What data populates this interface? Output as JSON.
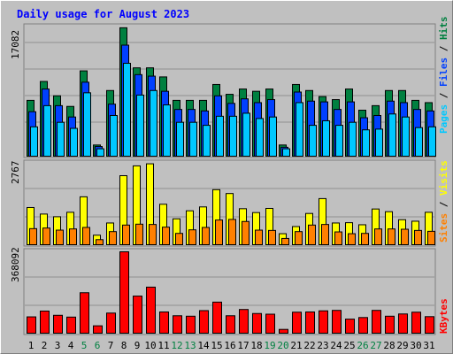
{
  "title": "Daily usage for August 2023",
  "colors": {
    "background": "#c0c0c0",
    "title": "#0000ff",
    "hits": "#008040",
    "files": "#0040ff",
    "pages": "#00c8ff",
    "visits": "#ffff00",
    "sites": "#ff8000",
    "kbytes": "#ff0000",
    "weekday_label": "#000000",
    "weekend_label": "#008040"
  },
  "panel_labels": {
    "top": {
      "pages": "Pages",
      "files": "Files",
      "hits": "Hits",
      "sep": " / "
    },
    "middle": {
      "sites": "Sites",
      "visits": "Visits",
      "sep": " / "
    },
    "bottom": {
      "kbytes": "KBytes"
    }
  },
  "chart_data": [
    {
      "type": "bar",
      "categories": [
        "1",
        "2",
        "3",
        "4",
        "5",
        "6",
        "7",
        "8",
        "9",
        "10",
        "11",
        "12",
        "13",
        "14",
        "15",
        "16",
        "17",
        "18",
        "19",
        "20",
        "21",
        "22",
        "23",
        "24",
        "25",
        "26",
        "27",
        "28",
        "29",
        "30",
        "31"
      ],
      "weekend_days": [
        "5",
        "6",
        "12",
        "13",
        "19",
        "20",
        "26",
        "27"
      ],
      "ylim": [
        0,
        17082
      ],
      "ytick_label": "17082",
      "series": [
        {
          "name": "Hits",
          "values": [
            7500,
            10000,
            8100,
            6700,
            11400,
            1600,
            8800,
            17100,
            11800,
            11800,
            10600,
            7500,
            7500,
            7500,
            9600,
            8300,
            9000,
            8700,
            9000,
            1600,
            9600,
            8800,
            8000,
            7600,
            9000,
            6200,
            6800,
            8800,
            8800,
            7500,
            7200
          ]
        },
        {
          "name": "Files",
          "values": [
            6000,
            9000,
            6800,
            5300,
            9900,
            1400,
            7000,
            14800,
            10900,
            10700,
            8700,
            6300,
            6300,
            6100,
            8100,
            7100,
            7700,
            7200,
            7600,
            1300,
            8600,
            7400,
            7300,
            6300,
            7300,
            5200,
            5500,
            7400,
            7200,
            6300,
            6100
          ]
        },
        {
          "name": "Pages",
          "values": [
            4000,
            6800,
            4600,
            3800,
            8500,
            1100,
            5500,
            12400,
            8200,
            8800,
            6900,
            4600,
            4600,
            4200,
            5400,
            5400,
            5800,
            5100,
            5300,
            1100,
            7200,
            4200,
            4800,
            4200,
            4600,
            3600,
            3700,
            5700,
            5300,
            3900,
            4000
          ]
        }
      ]
    },
    {
      "type": "bar",
      "categories": [
        "1",
        "2",
        "3",
        "4",
        "5",
        "6",
        "7",
        "8",
        "9",
        "10",
        "11",
        "12",
        "13",
        "14",
        "15",
        "16",
        "17",
        "18",
        "19",
        "20",
        "21",
        "22",
        "23",
        "24",
        "25",
        "26",
        "27",
        "28",
        "29",
        "30",
        "31"
      ],
      "ylim": [
        0,
        2767
      ],
      "ytick_label": "2767",
      "series": [
        {
          "name": "Visits",
          "values": [
            1280,
            1060,
            970,
            1120,
            1640,
            350,
            760,
            2350,
            2680,
            2750,
            1390,
            900,
            1170,
            1300,
            1880,
            1750,
            1240,
            1110,
            1250,
            400,
            640,
            1080,
            1580,
            760,
            770,
            700,
            1230,
            1140,
            870,
            820,
            1120
          ]
        },
        {
          "name": "Sites",
          "values": [
            570,
            590,
            520,
            560,
            610,
            200,
            470,
            690,
            720,
            710,
            620,
            410,
            530,
            610,
            860,
            880,
            810,
            520,
            510,
            240,
            470,
            690,
            710,
            460,
            400,
            410,
            560,
            560,
            550,
            510,
            480
          ]
        }
      ]
    },
    {
      "type": "bar",
      "categories": [
        "1",
        "2",
        "3",
        "4",
        "5",
        "6",
        "7",
        "8",
        "9",
        "10",
        "11",
        "12",
        "13",
        "14",
        "15",
        "16",
        "17",
        "18",
        "19",
        "20",
        "21",
        "22",
        "23",
        "24",
        "25",
        "26",
        "27",
        "28",
        "29",
        "30",
        "31"
      ],
      "ylim": [
        0,
        368092
      ],
      "ytick_label": "368092",
      "series": [
        {
          "name": "KBytes",
          "values": [
            77000,
            103000,
            84000,
            76000,
            185000,
            37000,
            94000,
            368000,
            170000,
            210000,
            99000,
            82000,
            80000,
            105000,
            143000,
            82000,
            110000,
            92000,
            89000,
            21000,
            98000,
            99000,
            104000,
            106000,
            67000,
            74000,
            106000,
            80000,
            90000,
            98000,
            78000
          ]
        }
      ]
    }
  ]
}
